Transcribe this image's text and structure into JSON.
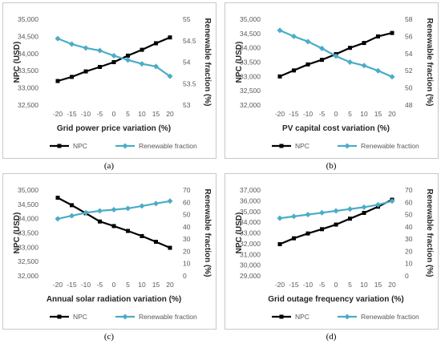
{
  "colors": {
    "npc": "#000000",
    "renewable": "#4bacc6",
    "frame": "#c8c8c8"
  },
  "chart_data": [
    {
      "type": "line",
      "panel_label": "(a)",
      "xlabel": "Grid power price variation (%)",
      "ylabel": "NPC (USD)",
      "y2label": "Renewable fraction (%)",
      "x": [
        -20,
        -15,
        -10,
        -5,
        0,
        5,
        10,
        15,
        20
      ],
      "x_ticks": [
        "-20",
        "-15",
        "-10",
        "-5",
        "0",
        "5",
        "10",
        "15",
        "20"
      ],
      "ylim": [
        32500,
        35000
      ],
      "y_ticks": [
        "32,500",
        "33,000",
        "33,500",
        "34,000",
        "34,500",
        "35,000"
      ],
      "y2lim": [
        53,
        55
      ],
      "y2_ticks": [
        "53",
        "53.5",
        "54",
        "54.5",
        "55"
      ],
      "legend": "bottom",
      "grid": false,
      "series": [
        {
          "name": "NPC",
          "axis": "left",
          "marker": "square",
          "values": [
            33200,
            33320,
            33480,
            33610,
            33750,
            33940,
            34110,
            34300,
            34470
          ]
        },
        {
          "name": "Renewable fraction",
          "axis": "right",
          "marker": "diamond",
          "values": [
            54.55,
            54.42,
            54.33,
            54.27,
            54.15,
            54.05,
            53.96,
            53.9,
            53.67
          ]
        }
      ]
    },
    {
      "type": "line",
      "panel_label": "(b)",
      "xlabel": "PV capital cost variation (%)",
      "ylabel": "NPC (USD)",
      "y2label": "Renewable fraction (%)",
      "x": [
        -20,
        -15,
        -10,
        -5,
        0,
        5,
        10,
        15,
        20
      ],
      "x_ticks": [
        "-20",
        "-15",
        "-10",
        "-5",
        "0",
        "5",
        "10",
        "15",
        "20"
      ],
      "ylim": [
        32000,
        35000
      ],
      "y_ticks": [
        "32,000",
        "32,500",
        "33,000",
        "33,500",
        "34,000",
        "34,500",
        "35,000"
      ],
      "y2lim": [
        48,
        58
      ],
      "y2_ticks": [
        "48",
        "50",
        "52",
        "54",
        "56",
        "58"
      ],
      "legend": "bottom",
      "grid": false,
      "series": [
        {
          "name": "NPC",
          "axis": "left",
          "marker": "square",
          "values": [
            33000,
            33210,
            33420,
            33580,
            33780,
            34000,
            34170,
            34400,
            34520
          ]
        },
        {
          "name": "Renewable fraction",
          "axis": "right",
          "marker": "diamond",
          "values": [
            56.7,
            56.0,
            55.4,
            54.6,
            53.7,
            53.0,
            52.6,
            52.0,
            51.3
          ]
        }
      ]
    },
    {
      "type": "line",
      "panel_label": "(c)",
      "xlabel": "Annual solar radiation variation (%)",
      "ylabel": "NPC (USD)",
      "y2label": "Renewable fraction (%)",
      "x": [
        -20,
        -15,
        -10,
        -5,
        0,
        5,
        10,
        15,
        20
      ],
      "x_ticks": [
        "-20",
        "-15",
        "-10",
        "-5",
        "0",
        "5",
        "10",
        "15",
        "20"
      ],
      "ylim": [
        32000,
        35000
      ],
      "y_ticks": [
        "32,000",
        "32,500",
        "33,000",
        "33,500",
        "34,000",
        "34,500",
        "35,000"
      ],
      "y2lim": [
        0,
        70
      ],
      "y2_ticks": [
        "0",
        "10",
        "20",
        "30",
        "40",
        "50",
        "60",
        "70"
      ],
      "legend": "bottom",
      "grid": false,
      "series": [
        {
          "name": "NPC",
          "axis": "left",
          "marker": "square",
          "values": [
            34730,
            34470,
            34190,
            33900,
            33740,
            33570,
            33390,
            33190,
            32980
          ]
        },
        {
          "name": "Renewable fraction",
          "axis": "right",
          "marker": "diamond",
          "values": [
            46.5,
            49.0,
            51.5,
            53.0,
            54.0,
            55.0,
            57.0,
            59.0,
            61.0
          ]
        }
      ]
    },
    {
      "type": "line",
      "panel_label": "(d)",
      "xlabel": "Grid outage frequency variation (%)",
      "ylabel": "NPC (USD)",
      "y2label": "Renewable fraction (%)",
      "x": [
        -20,
        -15,
        -10,
        -5,
        0,
        5,
        10,
        15,
        20
      ],
      "x_ticks": [
        "-20",
        "-15",
        "-10",
        "-5",
        "0",
        "5",
        "10",
        "15",
        "20"
      ],
      "ylim": [
        29000,
        37000
      ],
      "y_ticks": [
        "29,000",
        "30,000",
        "31,000",
        "32,000",
        "33,000",
        "34,000",
        "35,000",
        "36,000",
        "37,000"
      ],
      "y2lim": [
        0,
        70
      ],
      "y2_ticks": [
        "0",
        "10",
        "20",
        "30",
        "40",
        "50",
        "60",
        "70"
      ],
      "legend": "bottom",
      "grid": false,
      "series": [
        {
          "name": "NPC",
          "axis": "left",
          "marker": "square",
          "values": [
            31950,
            32500,
            32950,
            33350,
            33780,
            34330,
            34870,
            35450,
            36100
          ]
        },
        {
          "name": "Renewable fraction",
          "axis": "right",
          "marker": "diamond",
          "values": [
            47.0,
            48.5,
            50.0,
            51.5,
            53.0,
            54.5,
            56.0,
            58.0,
            61.0
          ]
        }
      ]
    }
  ]
}
